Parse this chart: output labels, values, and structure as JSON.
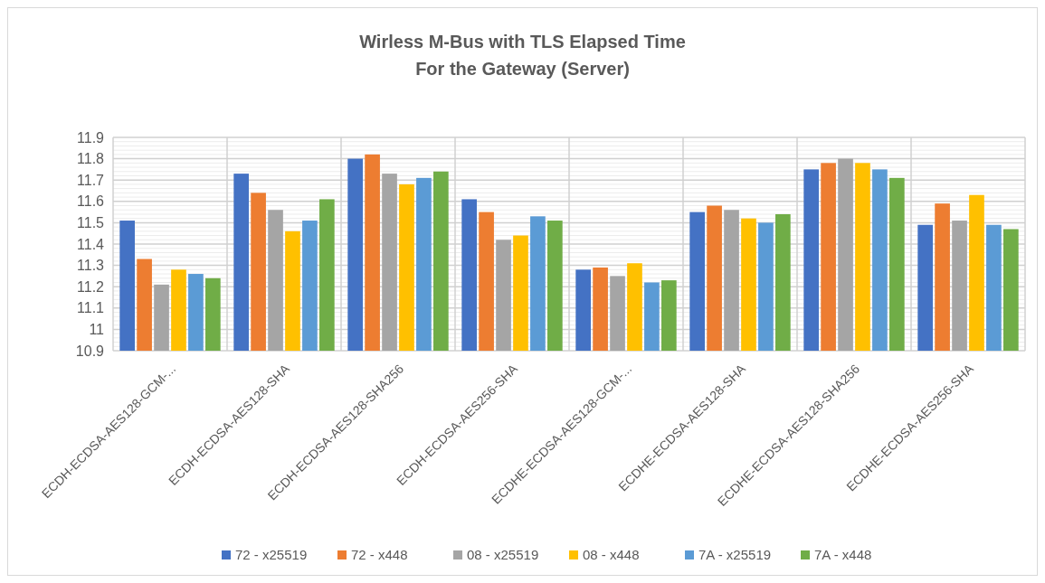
{
  "chart_data": {
    "type": "bar",
    "title": "Wirless M-Bus with TLS Elapsed Time\nFor the Gateway (Server)",
    "categories": [
      "ECDH-ECDSA-AES128-GCM-...",
      "ECDH-ECDSA-AES128-SHA",
      "ECDH-ECDSA-AES128-SHA256",
      "ECDH-ECDSA-AES256-SHA",
      "ECDHE-ECDSA-AES128-GCM-...",
      "ECDHE-ECDSA-AES128-SHA",
      "ECDHE-ECDSA-AES128-SHA256",
      "ECDHE-ECDSA-AES256-SHA"
    ],
    "series": [
      {
        "name": "72 - x25519",
        "color": "#4472c4",
        "values": [
          11.51,
          11.73,
          11.8,
          11.61,
          11.28,
          11.55,
          11.75,
          11.49
        ]
      },
      {
        "name": "72 - x448",
        "color": "#ed7d31",
        "values": [
          11.33,
          11.64,
          11.82,
          11.55,
          11.29,
          11.58,
          11.78,
          11.59
        ]
      },
      {
        "name": "08 - x25519",
        "color": "#a5a5a5",
        "values": [
          11.21,
          11.56,
          11.73,
          11.42,
          11.25,
          11.56,
          11.8,
          11.51
        ]
      },
      {
        "name": "08 - x448",
        "color": "#ffc000",
        "values": [
          11.28,
          11.46,
          11.68,
          11.44,
          11.31,
          11.52,
          11.78,
          11.63
        ]
      },
      {
        "name": "7A - x25519",
        "color": "#5b9bd5",
        "values": [
          11.26,
          11.51,
          11.71,
          11.53,
          11.22,
          11.5,
          11.75,
          11.49
        ]
      },
      {
        "name": "7A - x448",
        "color": "#70ad47",
        "values": [
          11.24,
          11.61,
          11.74,
          11.51,
          11.23,
          11.54,
          11.71,
          11.47
        ]
      }
    ],
    "ylim": [
      10.9,
      11.9
    ],
    "yticks": [
      10.9,
      11,
      11.1,
      11.2,
      11.3,
      11.4,
      11.5,
      11.6,
      11.7,
      11.8,
      11.9
    ],
    "grid": true,
    "legend": "bottom"
  }
}
